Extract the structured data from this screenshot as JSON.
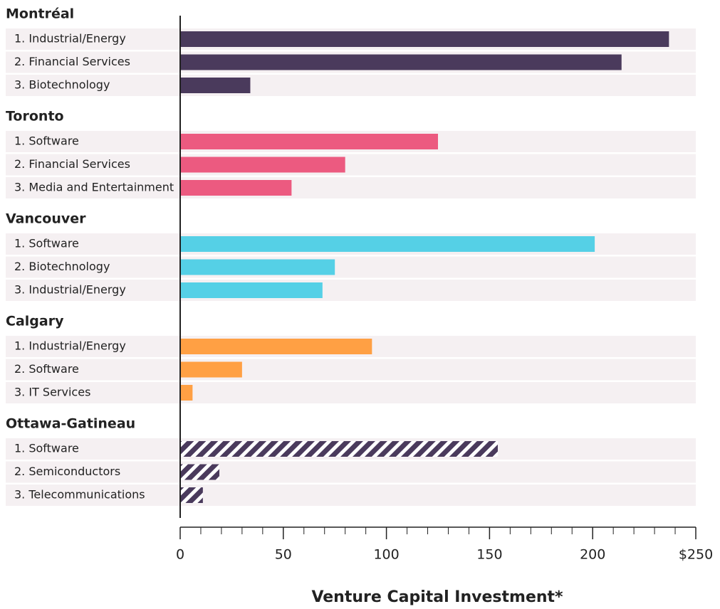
{
  "chart_data": {
    "type": "bar",
    "orientation": "horizontal",
    "x_label": "Venture Capital Investment*",
    "xlim": [
      0,
      250
    ],
    "xticks": [
      0,
      50,
      100,
      150,
      200,
      {
        "value": 250,
        "label": "$250"
      }
    ],
    "xticks_minor": [
      10,
      20,
      30,
      40,
      60,
      70,
      80,
      90,
      110,
      120,
      130,
      140,
      160,
      170,
      180,
      190,
      210,
      220,
      230,
      240
    ],
    "groups": [
      {
        "name": "Montréal",
        "color": "#4a3a5c",
        "pattern": "solid",
        "categories": [
          "1. Industrial/Energy",
          "2. Financial Services",
          "3. Biotechnology"
        ],
        "values": [
          237,
          214,
          34
        ]
      },
      {
        "name": "Toronto",
        "color": "#ec5a80",
        "pattern": "solid",
        "categories": [
          "1. Software",
          "2. Financial Services",
          "3. Media and Entertainment"
        ],
        "values": [
          125,
          80,
          54
        ]
      },
      {
        "name": "Vancouver",
        "color": "#55d0e6",
        "pattern": "solid",
        "categories": [
          "1. Software",
          "2. Biotechnology",
          "3. Industrial/Energy"
        ],
        "values": [
          201,
          75,
          69
        ]
      },
      {
        "name": "Calgary",
        "color": "#ffa044",
        "pattern": "solid",
        "categories": [
          "1. Industrial/Energy",
          "2. Software",
          "3. IT Services"
        ],
        "values": [
          93,
          30,
          6
        ]
      },
      {
        "name": "Ottawa-Gatineau",
        "color": "#4a3a5c",
        "pattern": "hatch",
        "categories": [
          "1. Software",
          "2. Semiconductors",
          "3. Telecommunications"
        ],
        "values": [
          154,
          19,
          11
        ]
      }
    ]
  }
}
